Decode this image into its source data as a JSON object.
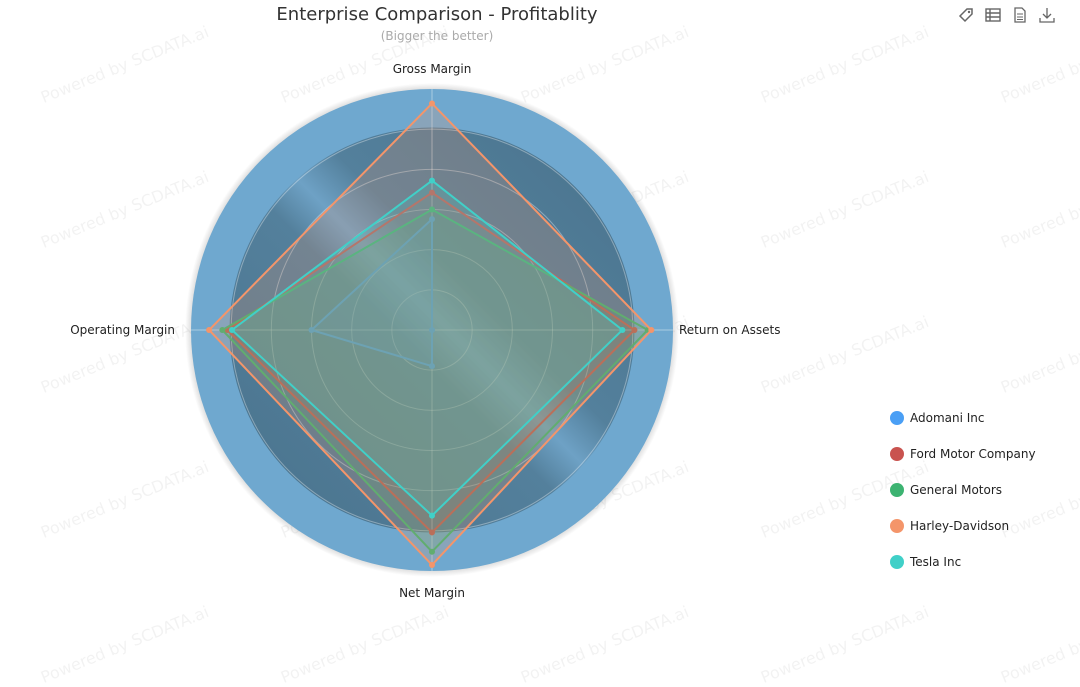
{
  "toolbar": {
    "icons": [
      "tag-icon",
      "data-view-icon",
      "document-icon",
      "download-icon"
    ]
  },
  "watermark": "Powered by SCDATA.ai",
  "chart_data": {
    "type": "radar",
    "title": "Enterprise Comparison - Profitablity",
    "subtitle": "(Bigger the better)",
    "indicators": [
      "Gross Margin",
      "Return on Assets",
      "Net Margin",
      "Operating Margin"
    ],
    "scale": "normalized 0-1 (no tick labels shown)",
    "rings": 6,
    "legend_position": "bottom-right",
    "series": [
      {
        "name": "Adomani Inc",
        "color": "#4a9ff5",
        "values": [
          0.46,
          0.0,
          0.15,
          0.5
        ]
      },
      {
        "name": "Ford Motor Company",
        "color": "#c9534f",
        "values": [
          0.57,
          0.84,
          0.84,
          0.85
        ]
      },
      {
        "name": "General Motors",
        "color": "#3cb371",
        "values": [
          0.5,
          0.895,
          0.92,
          0.87
        ]
      },
      {
        "name": "Harley-Davidson",
        "color": "#f4956a",
        "values": [
          0.94,
          0.91,
          0.975,
          0.925
        ]
      },
      {
        "name": "Tesla Inc",
        "color": "#40d0c8",
        "values": [
          0.62,
          0.79,
          0.77,
          0.83
        ]
      }
    ]
  }
}
